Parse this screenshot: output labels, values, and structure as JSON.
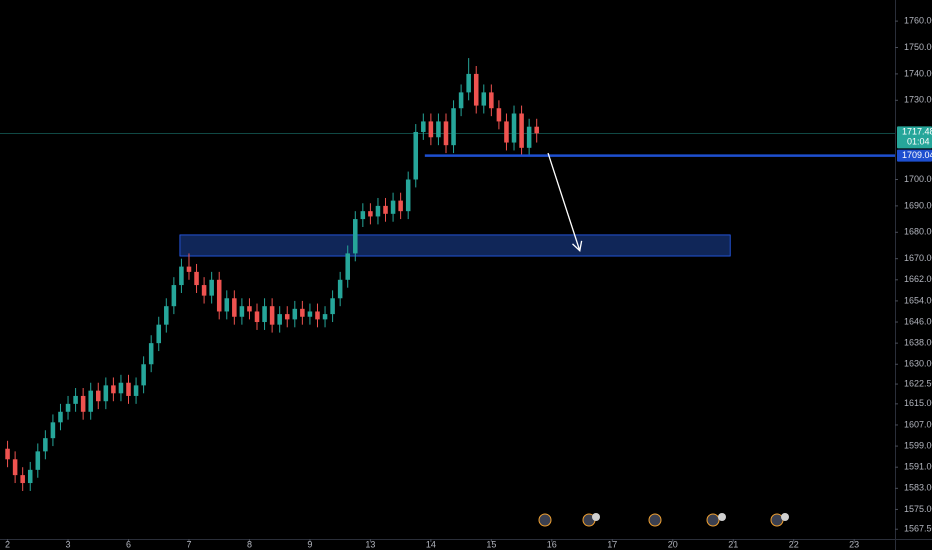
{
  "chart_data": {
    "type": "candlestick",
    "up_color": "#26a69a",
    "down_color": "#ef5350",
    "x": [
      0,
      1,
      2,
      3,
      4,
      5,
      6,
      7,
      8,
      9,
      10,
      11,
      12,
      13,
      14,
      15,
      16,
      17,
      18,
      19,
      20,
      21,
      22,
      23,
      24,
      25,
      26,
      27,
      28,
      29,
      30,
      31,
      32,
      33,
      34,
      35,
      36,
      37,
      38,
      39,
      40,
      41,
      42,
      43,
      44,
      45,
      46,
      47,
      48,
      49,
      50,
      51,
      52,
      53,
      54,
      55,
      56,
      57,
      58,
      59,
      60,
      61,
      62,
      63,
      64,
      65,
      66,
      67,
      68,
      69,
      70
    ],
    "open": [
      1598,
      1594,
      1588,
      1585,
      1590,
      1597,
      1602,
      1608,
      1612,
      1615,
      1618,
      1612,
      1620,
      1616,
      1622,
      1619,
      1623,
      1618,
      1622,
      1630,
      1638,
      1645,
      1652,
      1660,
      1667,
      1665,
      1660,
      1656,
      1662,
      1650,
      1655,
      1648,
      1652,
      1650,
      1646,
      1652,
      1645,
      1649,
      1647,
      1651,
      1648,
      1650,
      1647,
      1649,
      1655,
      1662,
      1672,
      1685,
      1688,
      1686,
      1690,
      1687,
      1692,
      1688,
      1700,
      1718,
      1722,
      1716,
      1722,
      1713,
      1727,
      1733,
      1740,
      1728,
      1733,
      1727,
      1722,
      1714,
      1725,
      1712,
      1720
    ],
    "high": [
      1601,
      1597,
      1591,
      1593,
      1600,
      1605,
      1611,
      1615,
      1618,
      1621,
      1621,
      1623,
      1623,
      1625,
      1625,
      1626,
      1626,
      1625,
      1633,
      1641,
      1648,
      1655,
      1663,
      1670,
      1672,
      1668,
      1663,
      1665,
      1665,
      1658,
      1658,
      1655,
      1655,
      1653,
      1655,
      1655,
      1652,
      1652,
      1654,
      1654,
      1653,
      1653,
      1652,
      1658,
      1665,
      1675,
      1688,
      1691,
      1691,
      1693,
      1693,
      1695,
      1695,
      1703,
      1721,
      1725,
      1725,
      1725,
      1725,
      1730,
      1736,
      1746,
      1743,
      1736,
      1736,
      1730,
      1725,
      1728,
      1728,
      1723,
      1723
    ],
    "low": [
      1591,
      1585,
      1582,
      1582,
      1587,
      1594,
      1599,
      1605,
      1609,
      1612,
      1609,
      1609,
      1613,
      1613,
      1616,
      1616,
      1615,
      1615,
      1619,
      1627,
      1635,
      1642,
      1649,
      1657,
      1662,
      1657,
      1653,
      1653,
      1647,
      1647,
      1645,
      1645,
      1647,
      1643,
      1643,
      1642,
      1642,
      1644,
      1644,
      1645,
      1645,
      1644,
      1644,
      1646,
      1652,
      1659,
      1669,
      1682,
      1683,
      1683,
      1684,
      1684,
      1685,
      1685,
      1697,
      1715,
      1713,
      1713,
      1710,
      1710,
      1724,
      1730,
      1725,
      1725,
      1724,
      1719,
      1711,
      1711,
      1709,
      1709,
      1714
    ],
    "close": [
      1594,
      1588,
      1585,
      1590,
      1597,
      1602,
      1608,
      1612,
      1615,
      1618,
      1612,
      1620,
      1616,
      1622,
      1619,
      1623,
      1618,
      1622,
      1630,
      1638,
      1645,
      1652,
      1660,
      1667,
      1665,
      1660,
      1656,
      1662,
      1650,
      1655,
      1648,
      1652,
      1650,
      1646,
      1652,
      1645,
      1649,
      1647,
      1651,
      1648,
      1650,
      1647,
      1649,
      1655,
      1662,
      1672,
      1685,
      1688,
      1686,
      1690,
      1687,
      1692,
      1688,
      1700,
      1718,
      1722,
      1716,
      1722,
      1713,
      1727,
      1733,
      1740,
      1728,
      1733,
      1727,
      1722,
      1714,
      1725,
      1712,
      1720,
      1717.48
    ],
    "xlim": [
      -1,
      117.4
    ],
    "xticks": [
      {
        "value": 0,
        "label": "2"
      },
      {
        "value": 8,
        "label": "3"
      },
      {
        "value": 16,
        "label": "6"
      },
      {
        "value": 24,
        "label": "7"
      },
      {
        "value": 32,
        "label": "8"
      },
      {
        "value": 40,
        "label": "9"
      },
      {
        "value": 48,
        "label": "13"
      },
      {
        "value": 56,
        "label": "14"
      },
      {
        "value": 64,
        "label": "15"
      },
      {
        "value": 72,
        "label": "16"
      },
      {
        "value": 80,
        "label": "17"
      },
      {
        "value": 88,
        "label": "20"
      },
      {
        "value": 96,
        "label": "21"
      },
      {
        "value": 104,
        "label": "22"
      },
      {
        "value": 112,
        "label": "23"
      }
    ],
    "ylim": [
      1563.8,
      1768
    ],
    "yticks": [
      {
        "value": 1760,
        "label": "1760.00"
      },
      {
        "value": 1750,
        "label": "1750.00"
      },
      {
        "value": 1740,
        "label": "1740.00"
      },
      {
        "value": 1730,
        "label": "1730.00"
      },
      {
        "value": 1700,
        "label": "1700.00"
      },
      {
        "value": 1690,
        "label": "1690.00"
      },
      {
        "value": 1680,
        "label": "1680.00"
      },
      {
        "value": 1670,
        "label": "1670.00"
      },
      {
        "value": 1662,
        "label": "1662.00"
      },
      {
        "value": 1654,
        "label": "1654.00"
      },
      {
        "value": 1646,
        "label": "1646.00"
      },
      {
        "value": 1638,
        "label": "1638.00"
      },
      {
        "value": 1630,
        "label": "1630.00"
      },
      {
        "value": 1622.5,
        "label": "1622.50"
      },
      {
        "value": 1615,
        "label": "1615.00"
      },
      {
        "value": 1607,
        "label": "1607.00"
      },
      {
        "value": 1599,
        "label": "1599.00"
      },
      {
        "value": 1591,
        "label": "1591.00"
      },
      {
        "value": 1583,
        "label": "1583.00"
      },
      {
        "value": 1575,
        "label": "1575.00"
      },
      {
        "value": 1567.5,
        "label": "1567.50"
      }
    ],
    "last_price": 1717.48,
    "countdown": "01:04",
    "level": 1709.04,
    "level_start_x": 55.2,
    "zone": {
      "x": [
        22.8,
        95.6
      ],
      "y": [
        1671,
        1679
      ]
    },
    "arrow": {
      "x": [
        71.5,
        75.7
      ],
      "y": [
        1710,
        1673
      ]
    }
  }
}
